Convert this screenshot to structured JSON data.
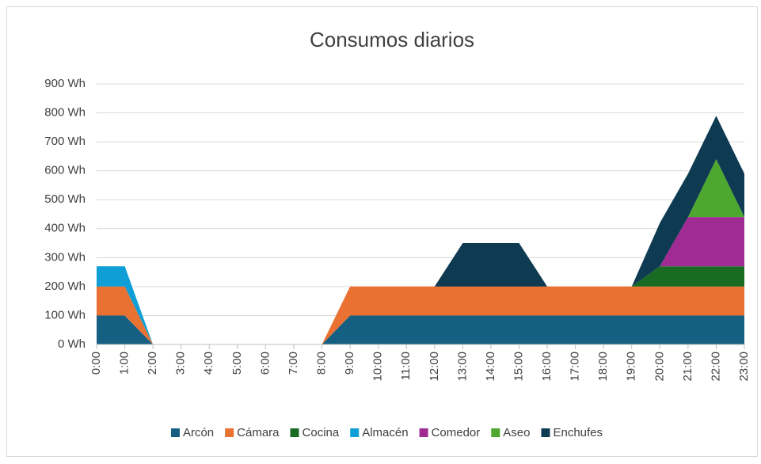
{
  "chart_data": {
    "type": "stacked-area",
    "title": "Consumos diarios",
    "categories": [
      "0:00",
      "1:00",
      "2:00",
      "3:00",
      "4:00",
      "5:00",
      "6:00",
      "7:00",
      "8:00",
      "9:00",
      "10:00",
      "11:00",
      "12:00",
      "13:00",
      "14:00",
      "15:00",
      "16:00",
      "17:00",
      "18:00",
      "19:00",
      "20:00",
      "21:00",
      "22:00",
      "23:00"
    ],
    "series": [
      {
        "name": "Arcón",
        "color": "#156082",
        "values": [
          100,
          100,
          0,
          0,
          0,
          0,
          0,
          0,
          0,
          100,
          100,
          100,
          100,
          100,
          100,
          100,
          100,
          100,
          100,
          100,
          100,
          100,
          100,
          100
        ]
      },
      {
        "name": "Cámara",
        "color": "#e97132",
        "values": [
          100,
          100,
          0,
          0,
          0,
          0,
          0,
          0,
          0,
          100,
          100,
          100,
          100,
          100,
          100,
          100,
          100,
          100,
          100,
          100,
          100,
          100,
          100,
          100
        ]
      },
      {
        "name": "Cocina",
        "color": "#196b24",
        "values": [
          0,
          0,
          0,
          0,
          0,
          0,
          0,
          0,
          0,
          0,
          0,
          0,
          0,
          0,
          0,
          0,
          0,
          0,
          0,
          0,
          70,
          70,
          70,
          70
        ]
      },
      {
        "name": "Almacén",
        "color": "#0f9ed5",
        "values": [
          70,
          70,
          0,
          0,
          0,
          0,
          0,
          0,
          0,
          0,
          0,
          0,
          0,
          0,
          0,
          0,
          0,
          0,
          0,
          0,
          0,
          0,
          0,
          0
        ]
      },
      {
        "name": "Comedor",
        "color": "#a02b93",
        "values": [
          0,
          0,
          0,
          0,
          0,
          0,
          0,
          0,
          0,
          0,
          0,
          0,
          0,
          0,
          0,
          0,
          0,
          0,
          0,
          0,
          0,
          170,
          170,
          170
        ]
      },
      {
        "name": "Aseo",
        "color": "#4ea72e",
        "values": [
          0,
          0,
          0,
          0,
          0,
          0,
          0,
          0,
          0,
          0,
          0,
          0,
          0,
          0,
          0,
          0,
          0,
          0,
          0,
          0,
          0,
          0,
          200,
          0
        ]
      },
      {
        "name": "Enchufes",
        "color": "#0e3a52",
        "values": [
          0,
          0,
          0,
          0,
          0,
          0,
          0,
          0,
          0,
          0,
          0,
          0,
          0,
          150,
          150,
          150,
          0,
          0,
          0,
          0,
          150,
          150,
          150,
          150
        ]
      }
    ],
    "ylim": [
      0,
      900
    ],
    "yticks": [
      {
        "value": 0,
        "label": "0 Wh"
      },
      {
        "value": 100,
        "label": "100 Wh"
      },
      {
        "value": 200,
        "label": "200 Wh"
      },
      {
        "value": 300,
        "label": "300 Wh"
      },
      {
        "value": 400,
        "label": "400 Wh"
      },
      {
        "value": 500,
        "label": "500 Wh"
      },
      {
        "value": 600,
        "label": "600 Wh"
      },
      {
        "value": 700,
        "label": "700 Wh"
      },
      {
        "value": 800,
        "label": "800 Wh"
      },
      {
        "value": 900,
        "label": "900 Wh"
      }
    ],
    "grid": true,
    "legend": "bottom"
  }
}
